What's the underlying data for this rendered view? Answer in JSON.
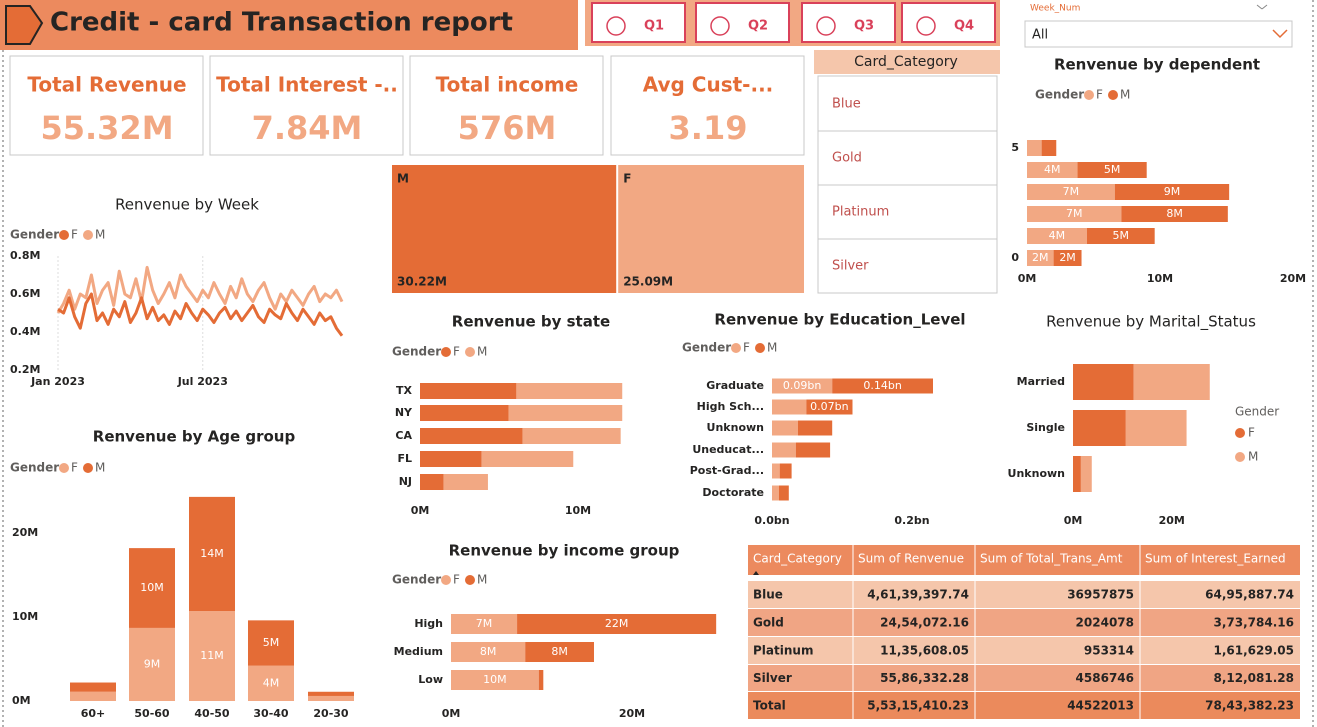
{
  "header": {
    "title": "Credit - card Transaction report"
  },
  "quarters": [
    "Q1",
    "Q2",
    "Q3",
    "Q4"
  ],
  "week_filter": {
    "label": "Week_Num",
    "value": "All"
  },
  "kpis": [
    {
      "title": "Total Revenue",
      "value": "55.32M"
    },
    {
      "title": "Total Interest -..",
      "value": "7.84M"
    },
    {
      "title": "Total income",
      "value": "576M"
    },
    {
      "title": "Avg Cust-...",
      "value": "3.19"
    }
  ],
  "card_category": {
    "title": "Card_Category",
    "items": [
      "Blue",
      "Gold",
      "Platinum",
      "Silver"
    ]
  },
  "table": {
    "columns": [
      "Card_Category",
      "Sum of Renvenue",
      "Sum of Total_Trans_Amt",
      "Sum of Interest_Earned"
    ],
    "rows": [
      [
        "Blue",
        "4,61,39,397.74",
        "36957875",
        "64,95,887.74"
      ],
      [
        "Gold",
        "24,54,072.16",
        "2024078",
        "3,73,784.16"
      ],
      [
        "Platinum",
        "11,35,608.05",
        "953314",
        "1,61,629.05"
      ],
      [
        "Silver",
        "55,86,332.28",
        "4586746",
        "8,12,081.28"
      ]
    ],
    "total": [
      "Total",
      "5,53,15,410.23",
      "44522013",
      "78,43,382.23"
    ]
  },
  "chart_data": [
    {
      "type": "line",
      "title": "Renvenue by Week",
      "legend_title": "Gender",
      "categories": [
        "Jan 2023",
        null,
        null,
        null,
        null,
        null,
        null,
        null,
        null,
        null,
        null,
        null,
        null,
        null,
        null,
        null,
        null,
        null,
        null,
        null,
        null,
        null,
        null,
        null,
        null,
        null,
        "Jul 2023",
        null,
        null,
        null,
        null,
        null,
        null,
        null,
        null,
        null,
        null,
        null,
        null,
        null,
        null,
        null,
        null,
        null,
        null,
        null,
        null,
        null,
        null,
        null,
        null,
        null
      ],
      "ylim": [
        0.2,
        0.8
      ],
      "yticks": [
        {
          "value": 0.2,
          "label": "0.2M"
        },
        {
          "value": 0.4,
          "label": "0.4M"
        },
        {
          "value": 0.6,
          "label": "0.6M"
        },
        {
          "value": 0.8,
          "label": "0.8M"
        }
      ],
      "series": [
        {
          "name": "F",
          "color": "#e46c36",
          "values": [
            0.52,
            0.5,
            0.58,
            0.48,
            0.42,
            0.55,
            0.6,
            0.46,
            0.5,
            0.44,
            0.52,
            0.48,
            0.56,
            0.45,
            0.5,
            0.58,
            0.47,
            0.53,
            0.46,
            0.49,
            0.44,
            0.51,
            0.47,
            0.55,
            0.5,
            0.46,
            0.52,
            0.49,
            0.45,
            0.5,
            0.53,
            0.47,
            0.51,
            0.46,
            0.5,
            0.54,
            0.48,
            0.45,
            0.52,
            0.49,
            0.47,
            0.55,
            0.5,
            0.46,
            0.52,
            0.48,
            0.44,
            0.5,
            0.46,
            0.48,
            0.42,
            0.38
          ]
        },
        {
          "name": "M",
          "color": "#f2a883",
          "values": [
            0.5,
            0.55,
            0.62,
            0.52,
            0.6,
            0.58,
            0.7,
            0.55,
            0.62,
            0.66,
            0.54,
            0.72,
            0.6,
            0.58,
            0.68,
            0.56,
            0.74,
            0.62,
            0.55,
            0.6,
            0.66,
            0.58,
            0.7,
            0.64,
            0.6,
            0.56,
            0.62,
            0.58,
            0.66,
            0.6,
            0.55,
            0.64,
            0.58,
            0.68,
            0.6,
            0.56,
            0.62,
            0.66,
            0.58,
            0.52,
            0.6,
            0.56,
            0.62,
            0.58,
            0.54,
            0.6,
            0.64,
            0.56,
            0.6,
            0.58,
            0.62,
            0.56
          ]
        }
      ]
    },
    {
      "type": "treemap",
      "categories": [
        "M",
        "F"
      ],
      "values": [
        30.22,
        25.09
      ],
      "value_labels": [
        "30.22M",
        "25.09M"
      ],
      "colors": [
        "#e46c36",
        "#f2a883"
      ]
    },
    {
      "type": "bar",
      "orientation": "horizontal",
      "stacked": true,
      "title": "Renvenue by dependent",
      "legend_title": "Gender",
      "categories": [
        "5",
        null,
        null,
        null,
        null,
        "0"
      ],
      "xlim": [
        0,
        20
      ],
      "xticks": [
        {
          "value": 0,
          "label": "0M"
        },
        {
          "value": 10,
          "label": "10M"
        },
        {
          "value": 20,
          "label": "20M"
        }
      ],
      "series": [
        {
          "name": "F",
          "color": "#f2a883",
          "values": [
            1.1,
            3.8,
            6.6,
            7.1,
            4.5,
            2.0
          ],
          "value_labels": [
            null,
            "4M",
            "7M",
            "7M",
            "4M",
            "2M"
          ]
        },
        {
          "name": "M",
          "color": "#e46c36",
          "values": [
            1.1,
            5.2,
            8.6,
            8.0,
            5.1,
            2.1
          ],
          "value_labels": [
            null,
            "5M",
            "9M",
            "8M",
            "5M",
            "2M"
          ]
        }
      ]
    },
    {
      "type": "bar",
      "orientation": "horizontal",
      "stacked": true,
      "title": "Renvenue by state",
      "legend_title": "Gender",
      "categories": [
        "TX",
        "NY",
        "CA",
        "FL",
        "NJ"
      ],
      "xlim": [
        0,
        15
      ],
      "xticks": [
        {
          "value": 0,
          "label": "0M"
        },
        {
          "value": 10,
          "label": "10M"
        }
      ],
      "series": [
        {
          "name": "F",
          "color": "#e46c36",
          "values": [
            6.1,
            5.6,
            6.5,
            3.9,
            1.5
          ]
        },
        {
          "name": "M",
          "color": "#f2a883",
          "values": [
            6.7,
            7.2,
            6.2,
            5.8,
            2.8
          ]
        }
      ]
    },
    {
      "type": "bar",
      "orientation": "horizontal",
      "stacked": true,
      "title": "Renvenue by Education_Level",
      "legend_title": "Gender",
      "categories": [
        "Graduate",
        "High Sch...",
        "Unknown",
        "Uneducat...",
        "Post-Grad...",
        "Doctorate"
      ],
      "xlim": [
        0,
        0.25
      ],
      "xticks": [
        {
          "value": 0,
          "label": "0.0bn"
        },
        {
          "value": 0.2,
          "label": "0.2bn"
        }
      ],
      "series": [
        {
          "name": "F",
          "color": "#f2a883",
          "values": [
            0.086,
            0.049,
            0.037,
            0.034,
            0.011,
            0.01
          ],
          "value_labels": [
            "0.09bn",
            null,
            null,
            null,
            null,
            null
          ]
        },
        {
          "name": "M",
          "color": "#e46c36",
          "values": [
            0.144,
            0.066,
            0.049,
            0.049,
            0.017,
            0.014
          ],
          "value_labels": [
            "0.14bn",
            "0.07bn",
            null,
            null,
            null,
            null
          ]
        }
      ]
    },
    {
      "type": "bar",
      "orientation": "horizontal",
      "stacked": true,
      "title": "Renvenue by Marital_Status",
      "legend_title": "Gender",
      "categories": [
        "Married",
        "Single",
        "Unknown"
      ],
      "xlim": [
        0,
        32
      ],
      "xticks": [
        {
          "value": 0,
          "label": "0M"
        },
        {
          "value": 20,
          "label": "20M"
        }
      ],
      "series": [
        {
          "name": "F",
          "color": "#e46c36",
          "values": [
            12.3,
            10.7,
            1.6
          ]
        },
        {
          "name": "M",
          "color": "#f2a883",
          "values": [
            15.4,
            12.3,
            2.2
          ]
        }
      ]
    },
    {
      "type": "bar",
      "orientation": "vertical",
      "stacked": true,
      "title": "Renvenue by Age group",
      "legend_title": "Gender",
      "categories": [
        "60+",
        "50-60",
        "40-50",
        "30-40",
        "20-30"
      ],
      "ylim": [
        0,
        25
      ],
      "yticks": [
        {
          "value": 0,
          "label": "0M"
        },
        {
          "value": 10,
          "label": "10M"
        },
        {
          "value": 20,
          "label": "20M"
        }
      ],
      "series": [
        {
          "name": "F",
          "color": "#f2a883",
          "values": [
            1.1,
            8.7,
            10.7,
            4.2,
            0.6
          ],
          "value_labels": [
            null,
            "9M",
            "11M",
            "4M",
            null
          ]
        },
        {
          "name": "M",
          "color": "#e46c36",
          "values": [
            1.1,
            9.5,
            13.6,
            5.4,
            0.5
          ],
          "value_labels": [
            null,
            "10M",
            "14M",
            "5M",
            null
          ]
        }
      ]
    },
    {
      "type": "bar",
      "orientation": "horizontal",
      "stacked": true,
      "title": "Renvenue by income group",
      "legend_title": "Gender",
      "categories": [
        "High",
        "Medium",
        "Low"
      ],
      "xlim": [
        0,
        30
      ],
      "xticks": [
        {
          "value": 0,
          "label": "0M"
        },
        {
          "value": 20,
          "label": "20M"
        }
      ],
      "series": [
        {
          "name": "F",
          "color": "#f2a883",
          "values": [
            7.3,
            8.2,
            9.7
          ],
          "value_labels": [
            "7M",
            "8M",
            "10M"
          ]
        },
        {
          "name": "M",
          "color": "#e46c36",
          "values": [
            22.0,
            7.6,
            0.5
          ],
          "value_labels": [
            "22M",
            "8M",
            null
          ]
        }
      ]
    }
  ]
}
